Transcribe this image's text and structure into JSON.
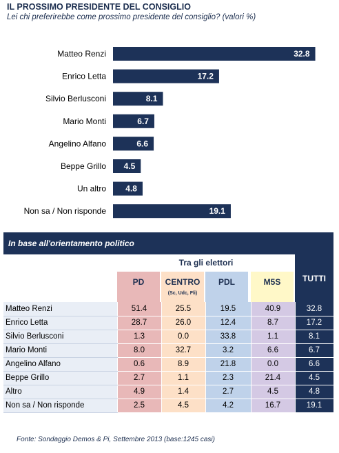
{
  "title": "IL PROSSIMO PRESIDENTE DEL CONSIGLIO",
  "subtitle": "Lei chi preferirebbe come prossimo presidente del consiglio? (valori %)",
  "chart_data": {
    "type": "bar",
    "orientation": "horizontal",
    "categories": [
      "Matteo Renzi",
      "Enrico Letta",
      "Silvio Berlusconi",
      "Mario Monti",
      "Angelino Alfano",
      "Beppe Grillo",
      "Un altro",
      "Non sa / Non risponde"
    ],
    "values": [
      32.8,
      17.2,
      8.1,
      6.7,
      6.6,
      4.5,
      4.8,
      19.1
    ],
    "bar_color": "#1d3258",
    "label_color": "#ffffff",
    "grid": false,
    "xlim": [
      0,
      35
    ]
  },
  "table": {
    "header": "In base all'orientamento politico",
    "group_label": "Tra gli elettori",
    "columns": [
      {
        "key": "pd",
        "label": "PD",
        "sublabel": "",
        "color": "#e8b8b8"
      },
      {
        "key": "centro",
        "label": "CENTRO",
        "sublabel": "(Sc, Udc, Fli)",
        "color": "#fde0c7"
      },
      {
        "key": "pdl",
        "label": "PDL",
        "sublabel": "",
        "color": "#bfd2ea"
      },
      {
        "key": "m5s",
        "label": "M5S",
        "sublabel": "",
        "color": "#fff8c8"
      }
    ],
    "total_label": "TUTTI",
    "rows": [
      {
        "label": "Matteo Renzi",
        "values": [
          "51.4",
          "25.5",
          "19.5",
          "40.9"
        ],
        "total": "32.8"
      },
      {
        "label": "Enrico Letta",
        "values": [
          "28.7",
          "26.0",
          "12.4",
          "8.7"
        ],
        "total": "17.2"
      },
      {
        "label": "Silvio Berlusconi",
        "values": [
          "1.3",
          "0.0",
          "33.8",
          "1.1"
        ],
        "total": "8.1"
      },
      {
        "label": "Mario Monti",
        "values": [
          "8.0",
          "32.7",
          "3.2",
          "6.6"
        ],
        "total": "6.7"
      },
      {
        "label": "Angelino Alfano",
        "values": [
          "0.6",
          "8.9",
          "21.8",
          "0.0"
        ],
        "total": "6.6"
      },
      {
        "label": "Beppe Grillo",
        "values": [
          "2.7",
          "1.1",
          "2.3",
          "21.4"
        ],
        "total": "4.5"
      },
      {
        "label": "Altro",
        "values": [
          "4.9",
          "1.4",
          "2.7",
          "4.5"
        ],
        "total": "4.8"
      },
      {
        "label": "Non sa / Non risponde",
        "values": [
          "2.5",
          "4.5",
          "4.2",
          "16.7"
        ],
        "total": "19.1"
      }
    ]
  },
  "footer": "Fonte: Sondaggio Demos & Pi, Settembre 2013 (base:1245 casi)"
}
